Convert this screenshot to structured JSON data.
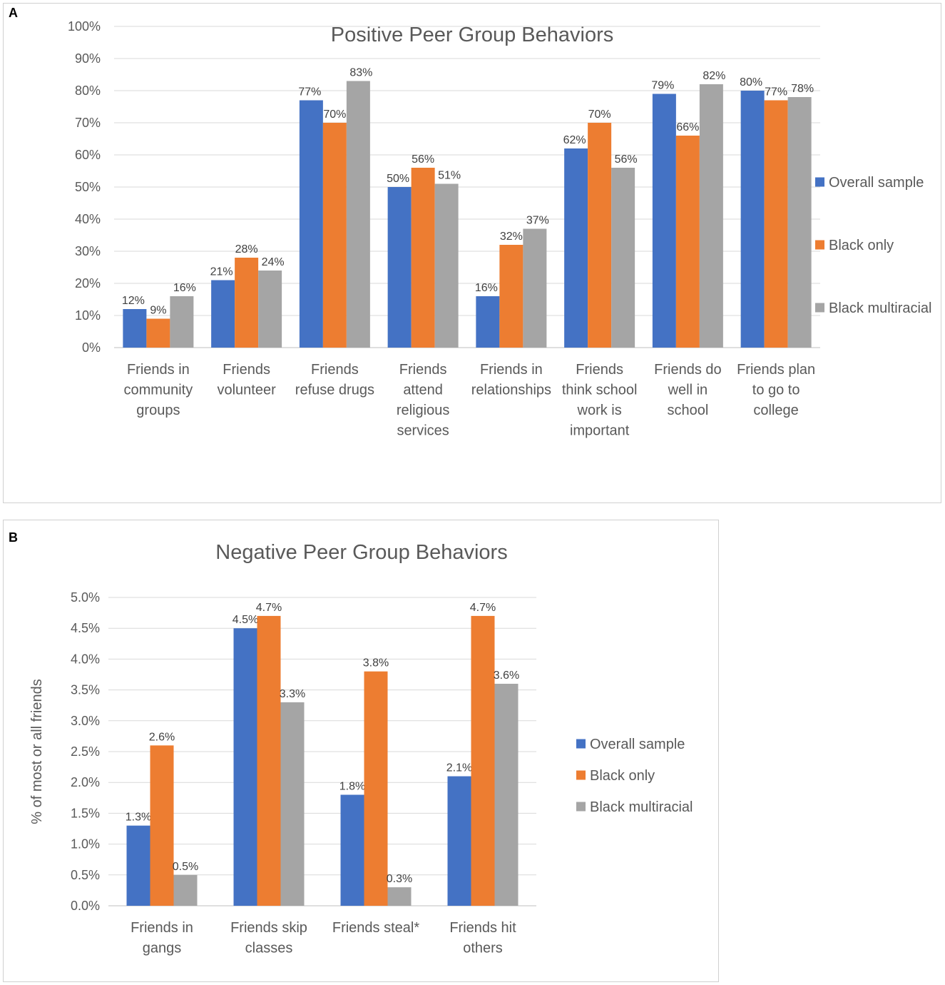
{
  "panels": [
    {
      "letter": "A"
    },
    {
      "letter": "B"
    }
  ],
  "colors": {
    "overall": "#4472C4",
    "black_only": "#ED7D31",
    "multiracial": "#A5A5A5",
    "grid": "#d9d9d9",
    "axis": "#bfbfbf"
  },
  "chart_data": [
    {
      "type": "bar",
      "title": "Positive Peer Group Behaviors",
      "xlabel": "",
      "ylabel": "",
      "ylim": [
        0,
        100
      ],
      "yticks": [
        "0%",
        "10%",
        "20%",
        "30%",
        "40%",
        "50%",
        "60%",
        "70%",
        "80%",
        "90%",
        "100%"
      ],
      "categories": [
        [
          "Friends in",
          "community",
          "groups"
        ],
        [
          "Friends",
          "volunteer"
        ],
        [
          "Friends",
          "refuse drugs"
        ],
        [
          "Friends",
          "attend",
          "religious",
          "services"
        ],
        [
          "Friends in",
          "relationships"
        ],
        [
          "Friends",
          "think school",
          "work is",
          "important"
        ],
        [
          "Friends do",
          "well in",
          "school"
        ],
        [
          "Friends plan",
          "to go to",
          "college"
        ]
      ],
      "series": [
        {
          "name": "Overall sample",
          "values": [
            12,
            21,
            77,
            50,
            16,
            62,
            79,
            80
          ],
          "labels": [
            "12%",
            "21%",
            "77%",
            "50%",
            "16%",
            "62%",
            "79%",
            "80%"
          ]
        },
        {
          "name": "Black only",
          "values": [
            9,
            28,
            70,
            56,
            32,
            70,
            66,
            77
          ],
          "labels": [
            "9%",
            "28%",
            "70%",
            "56%",
            "32%",
            "70%",
            "66%",
            "77%"
          ]
        },
        {
          "name": "Black multiracial",
          "values": [
            16,
            24,
            83,
            51,
            37,
            56,
            82,
            78
          ],
          "labels": [
            "16%",
            "24%",
            "83%",
            "51%",
            "37%",
            "56%",
            "82%",
            "78%"
          ]
        }
      ],
      "legend": "right"
    },
    {
      "type": "bar",
      "title": "Negative Peer Group Behaviors",
      "xlabel": "",
      "ylabel": "% of most or all friends",
      "ylim": [
        0,
        5
      ],
      "yticks": [
        "0.0%",
        "0.5%",
        "1.0%",
        "1.5%",
        "2.0%",
        "2.5%",
        "3.0%",
        "3.5%",
        "4.0%",
        "4.5%",
        "5.0%"
      ],
      "categories": [
        [
          "Friends in",
          "gangs"
        ],
        [
          "Friends skip",
          "classes"
        ],
        [
          "Friends steal*"
        ],
        [
          "Friends hit",
          "others"
        ]
      ],
      "series": [
        {
          "name": "Overall sample",
          "values": [
            1.3,
            4.5,
            1.8,
            2.1
          ],
          "labels": [
            "1.3%",
            "4.5%",
            "1.8%",
            "2.1%"
          ]
        },
        {
          "name": "Black only",
          "values": [
            2.6,
            4.7,
            3.8,
            4.7
          ],
          "labels": [
            "2.6%",
            "4.7%",
            "3.8%",
            "4.7%"
          ]
        },
        {
          "name": "Black multiracial",
          "values": [
            0.5,
            3.3,
            0.3,
            3.6
          ],
          "labels": [
            "0.5%",
            "3.3%",
            "0.3%",
            "3.6%"
          ]
        }
      ],
      "legend": "right"
    }
  ]
}
